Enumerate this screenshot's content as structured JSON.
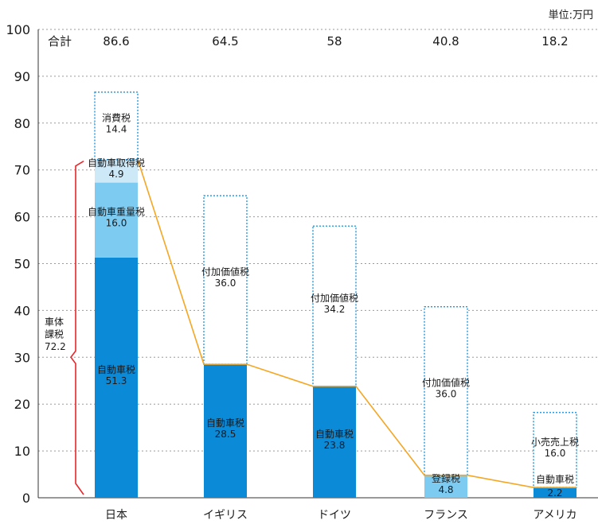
{
  "chart_data": {
    "type": "bar",
    "unit_label": "単位:万円",
    "total_label": "合計",
    "ylim": [
      0,
      100
    ],
    "yticks": [
      0,
      10,
      20,
      30,
      40,
      50,
      60,
      70,
      80,
      90,
      100
    ],
    "categories": [
      "日本",
      "イギリス",
      "ドイツ",
      "フランス",
      "アメリカ"
    ],
    "totals": [
      "86.6",
      "64.5",
      "58",
      "40.8",
      "18.2"
    ],
    "stacks": [
      [
        {
          "name": "自動車税",
          "value": 51.3,
          "style": "dark"
        },
        {
          "name": "自動車重量税",
          "value": 16.0,
          "style": "light"
        },
        {
          "name": "自動車取得税",
          "value": 4.9,
          "style": "pale"
        },
        {
          "name": "消費税",
          "value": 14.4,
          "style": "dotted"
        }
      ],
      [
        {
          "name": "自動車税",
          "value": 28.5,
          "style": "dark"
        },
        {
          "name": "付加価値税",
          "value": 36.0,
          "style": "dotted"
        }
      ],
      [
        {
          "name": "自動車税",
          "value": 23.8,
          "style": "dark"
        },
        {
          "name": "付加価値税",
          "value": 34.2,
          "style": "dotted"
        }
      ],
      [
        {
          "name": "登録税",
          "value": 4.8,
          "style": "light"
        },
        {
          "name": "付加価値税",
          "value": 36.0,
          "style": "dotted"
        }
      ],
      [
        {
          "name": "自動車税",
          "value": 2.2,
          "style": "dark"
        },
        {
          "name": "小売売上税",
          "value": 16.0,
          "style": "dotted"
        }
      ]
    ],
    "bracket": {
      "lines": [
        "車体",
        "課税"
      ],
      "value": "72.2",
      "from": 0,
      "to": 72.2
    },
    "colors": {
      "dark": "#0b8ad8",
      "light": "#7ecbf2",
      "pale": "#cde9f8",
      "dotted_border": "#2f9bdc",
      "connector": "#f5a623",
      "bracket": "#e8262a"
    }
  }
}
